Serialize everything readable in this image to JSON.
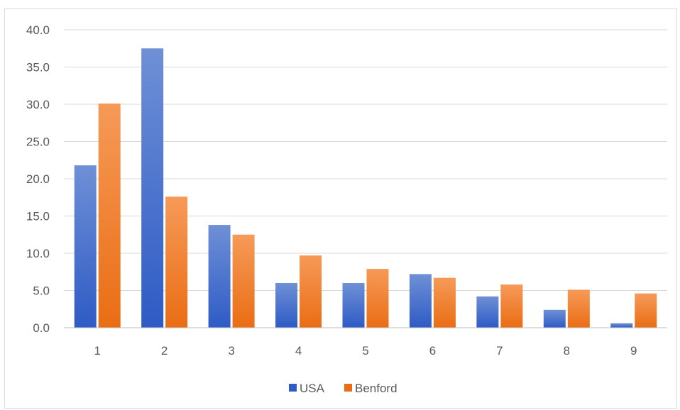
{
  "chart_data": {
    "type": "bar",
    "categories": [
      "1",
      "2",
      "3",
      "4",
      "5",
      "6",
      "7",
      "8",
      "9"
    ],
    "series": [
      {
        "name": "USA",
        "values": [
          21.8,
          37.5,
          13.8,
          6.0,
          6.0,
          7.2,
          4.2,
          2.4,
          0.6
        ],
        "color_top": "#6f90d6",
        "color_bottom": "#2e5bc5"
      },
      {
        "name": "Benford",
        "values": [
          30.1,
          17.6,
          12.5,
          9.7,
          7.9,
          6.7,
          5.8,
          5.1,
          4.6
        ],
        "color_top": "#f69a58",
        "color_bottom": "#ea6d14"
      }
    ],
    "yticks": [
      "0.0",
      "5.0",
      "10.0",
      "15.0",
      "20.0",
      "25.0",
      "30.0",
      "35.0",
      "40.0"
    ],
    "ylim": [
      0,
      40
    ],
    "grid": true,
    "legend_position": "bottom"
  }
}
